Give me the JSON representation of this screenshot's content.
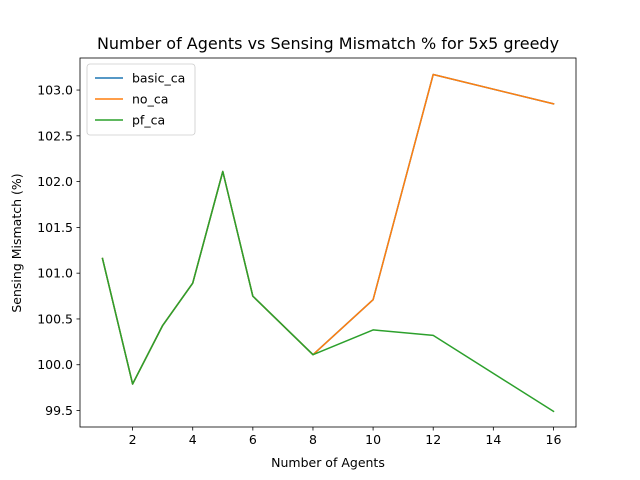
{
  "chart_data": {
    "type": "line",
    "title": "Number of Agents vs Sensing Mismatch % for 5x5 greedy",
    "xlabel": "Number of Agents",
    "ylabel": "Sensing Mismatch (%)",
    "xlim": [
      0.25,
      16.75
    ],
    "ylim": [
      99.32,
      103.35
    ],
    "xticks": [
      2,
      4,
      6,
      8,
      10,
      12,
      14,
      16
    ],
    "xtick_labels": [
      "2",
      "4",
      "6",
      "8",
      "10",
      "12",
      "14",
      "16"
    ],
    "yticks": [
      99.5,
      100.0,
      100.5,
      101.0,
      101.5,
      102.0,
      102.5,
      103.0
    ],
    "ytick_labels": [
      "99.5",
      "100.0",
      "100.5",
      "101.0",
      "101.5",
      "102.0",
      "102.5",
      "103.0"
    ],
    "grid": false,
    "legend_position": "top-left",
    "x": [
      1,
      2,
      3,
      4,
      5,
      6,
      8,
      10,
      12,
      16
    ],
    "series": [
      {
        "name": "basic_ca",
        "color": "#1f77b4",
        "values": [
          101.16,
          99.79,
          100.43,
          100.89,
          102.11,
          100.75,
          100.11,
          100.71,
          103.17,
          102.85
        ]
      },
      {
        "name": "no_ca",
        "color": "#ff7f0e",
        "values": [
          101.16,
          99.79,
          100.43,
          100.89,
          102.11,
          100.75,
          100.11,
          100.71,
          103.17,
          102.85
        ]
      },
      {
        "name": "pf_ca",
        "color": "#2ca02c",
        "values": [
          101.16,
          99.79,
          100.43,
          100.89,
          102.11,
          100.75,
          100.11,
          100.38,
          100.32,
          99.49
        ]
      }
    ]
  }
}
